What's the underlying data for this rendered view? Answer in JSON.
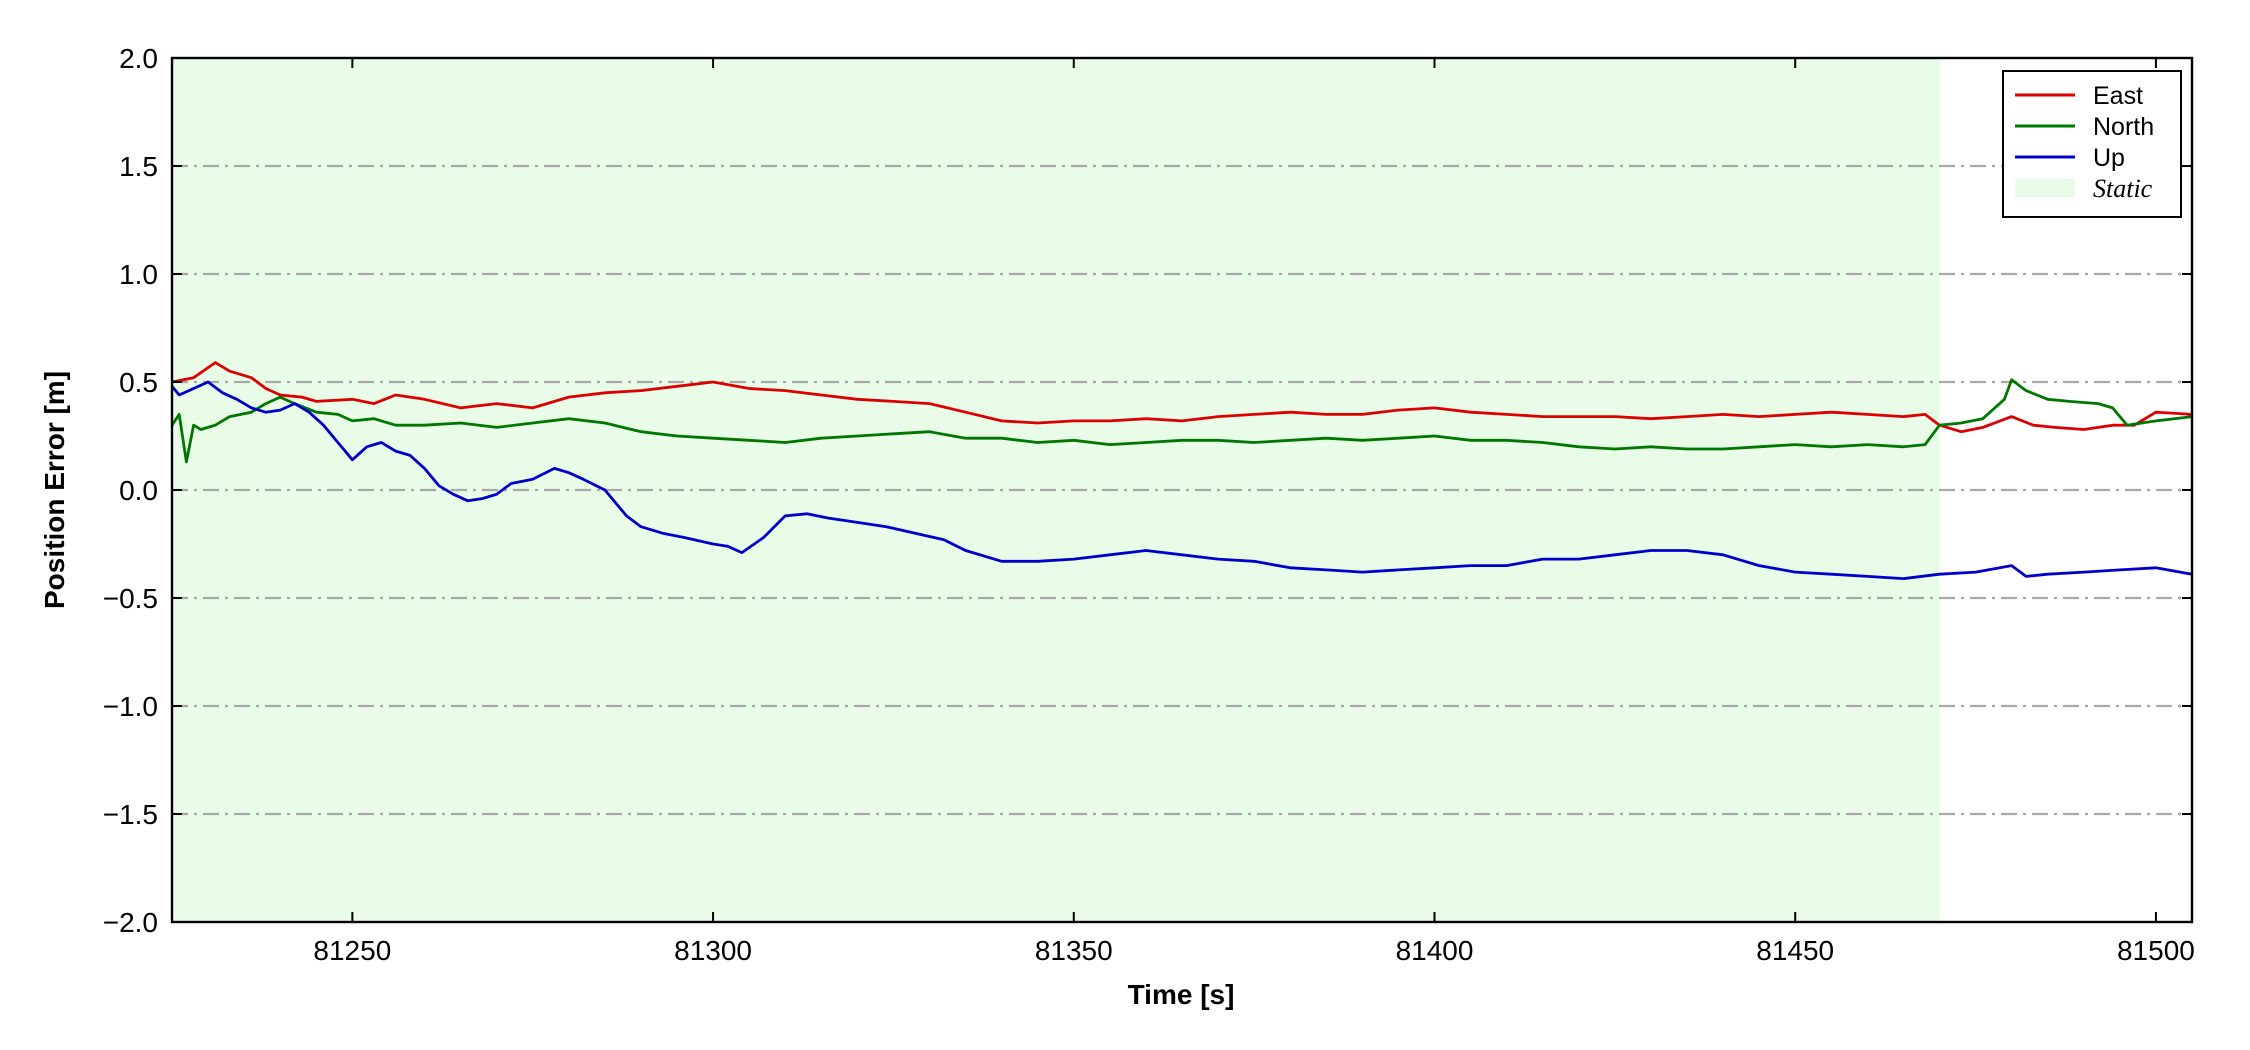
{
  "chart_data": {
    "type": "line",
    "title": "",
    "xlabel": "Time [s]",
    "ylabel": "Position Error [m]",
    "xlim": [
      81225,
      81505
    ],
    "ylim": [
      -2.0,
      2.0
    ],
    "xticks": [
      81250,
      81300,
      81350,
      81400,
      81450,
      81500
    ],
    "yticks": [
      -2.0,
      -1.5,
      -1.0,
      -0.5,
      0.0,
      0.5,
      1.0,
      1.5,
      2.0
    ],
    "ytick_labels": [
      "−2.0",
      "−1.5",
      "−1.0",
      "−0.5",
      "0.0",
      "0.5",
      "1.0",
      "1.5",
      "2.0"
    ],
    "grid": "horizontal dash-dot",
    "legend_position": "top-right",
    "shaded_regions": [
      {
        "name": "Static",
        "x_start": 81225,
        "x_end": 81470,
        "color": "#e8fce8"
      }
    ],
    "series": [
      {
        "name": "East",
        "color": "#dd0000",
        "x": [
          81225,
          81228,
          81231,
          81233,
          81236,
          81238,
          81240,
          81243,
          81245,
          81250,
          81253,
          81256,
          81260,
          81265,
          81270,
          81275,
          81280,
          81285,
          81290,
          81295,
          81300,
          81305,
          81310,
          81315,
          81320,
          81325,
          81330,
          81335,
          81340,
          81345,
          81350,
          81355,
          81360,
          81365,
          81370,
          81375,
          81380,
          81385,
          81390,
          81395,
          81400,
          81405,
          81410,
          81415,
          81420,
          81425,
          81430,
          81435,
          81440,
          81445,
          81450,
          81455,
          81460,
          81465,
          81468,
          81470,
          81473,
          81476,
          81480,
          81483,
          81486,
          81490,
          81494,
          81497,
          81500,
          81505
        ],
        "y": [
          0.5,
          0.52,
          0.59,
          0.55,
          0.52,
          0.47,
          0.44,
          0.43,
          0.41,
          0.42,
          0.4,
          0.44,
          0.42,
          0.38,
          0.4,
          0.38,
          0.43,
          0.45,
          0.46,
          0.48,
          0.5,
          0.47,
          0.46,
          0.44,
          0.42,
          0.41,
          0.4,
          0.36,
          0.32,
          0.31,
          0.32,
          0.32,
          0.33,
          0.32,
          0.34,
          0.35,
          0.36,
          0.35,
          0.35,
          0.37,
          0.38,
          0.36,
          0.35,
          0.34,
          0.34,
          0.34,
          0.33,
          0.34,
          0.35,
          0.34,
          0.35,
          0.36,
          0.35,
          0.34,
          0.35,
          0.3,
          0.27,
          0.29,
          0.34,
          0.3,
          0.29,
          0.28,
          0.3,
          0.3,
          0.36,
          0.35
        ]
      },
      {
        "name": "North",
        "color": "#007700",
        "x": [
          81225,
          81226,
          81227,
          81228,
          81229,
          81231,
          81233,
          81236,
          81238,
          81240,
          81242,
          81245,
          81248,
          81250,
          81253,
          81256,
          81260,
          81265,
          81270,
          81275,
          81280,
          81285,
          81290,
          81295,
          81300,
          81305,
          81310,
          81315,
          81320,
          81325,
          81330,
          81335,
          81340,
          81345,
          81350,
          81355,
          81360,
          81365,
          81370,
          81375,
          81380,
          81385,
          81390,
          81395,
          81400,
          81405,
          81410,
          81415,
          81420,
          81425,
          81430,
          81435,
          81440,
          81445,
          81450,
          81455,
          81460,
          81465,
          81468,
          81470,
          81473,
          81476,
          81479,
          81480,
          81482,
          81485,
          81488,
          81492,
          81494,
          81496,
          81500,
          81505
        ],
        "y": [
          0.3,
          0.35,
          0.13,
          0.3,
          0.28,
          0.3,
          0.34,
          0.36,
          0.4,
          0.43,
          0.4,
          0.36,
          0.35,
          0.32,
          0.33,
          0.3,
          0.3,
          0.31,
          0.29,
          0.31,
          0.33,
          0.31,
          0.27,
          0.25,
          0.24,
          0.23,
          0.22,
          0.24,
          0.25,
          0.26,
          0.27,
          0.24,
          0.24,
          0.22,
          0.23,
          0.21,
          0.22,
          0.23,
          0.23,
          0.22,
          0.23,
          0.24,
          0.23,
          0.24,
          0.25,
          0.23,
          0.23,
          0.22,
          0.2,
          0.19,
          0.2,
          0.19,
          0.19,
          0.2,
          0.21,
          0.2,
          0.21,
          0.2,
          0.21,
          0.3,
          0.31,
          0.33,
          0.42,
          0.51,
          0.46,
          0.42,
          0.41,
          0.4,
          0.38,
          0.3,
          0.32,
          0.34
        ]
      },
      {
        "name": "Up",
        "color": "#0000cc",
        "x": [
          81225,
          81226,
          81228,
          81230,
          81232,
          81234,
          81236,
          81238,
          81240,
          81242,
          81244,
          81246,
          81248,
          81250,
          81252,
          81254,
          81256,
          81258,
          81260,
          81262,
          81264,
          81266,
          81268,
          81270,
          81272,
          81275,
          81278,
          81280,
          81282,
          81285,
          81288,
          81290,
          81293,
          81296,
          81300,
          81302,
          81304,
          81307,
          81310,
          81313,
          81316,
          81320,
          81324,
          81328,
          81332,
          81335,
          81340,
          81345,
          81350,
          81355,
          81360,
          81365,
          81370,
          81375,
          81380,
          81385,
          81390,
          81395,
          81400,
          81405,
          81410,
          81415,
          81420,
          81425,
          81430,
          81435,
          81440,
          81445,
          81450,
          81455,
          81460,
          81465,
          81470,
          81475,
          81480,
          81482,
          81485,
          81490,
          81495,
          81500,
          81505
        ],
        "y": [
          0.48,
          0.44,
          0.47,
          0.5,
          0.45,
          0.42,
          0.38,
          0.36,
          0.37,
          0.4,
          0.36,
          0.3,
          0.22,
          0.14,
          0.2,
          0.22,
          0.18,
          0.16,
          0.1,
          0.02,
          -0.02,
          -0.05,
          -0.04,
          -0.02,
          0.03,
          0.05,
          0.1,
          0.08,
          0.05,
          0.0,
          -0.12,
          -0.17,
          -0.2,
          -0.22,
          -0.25,
          -0.26,
          -0.29,
          -0.22,
          -0.12,
          -0.11,
          -0.13,
          -0.15,
          -0.17,
          -0.2,
          -0.23,
          -0.28,
          -0.33,
          -0.33,
          -0.32,
          -0.3,
          -0.28,
          -0.3,
          -0.32,
          -0.33,
          -0.36,
          -0.37,
          -0.38,
          -0.37,
          -0.36,
          -0.35,
          -0.35,
          -0.32,
          -0.32,
          -0.3,
          -0.28,
          -0.28,
          -0.3,
          -0.35,
          -0.38,
          -0.39,
          -0.4,
          -0.41,
          -0.39,
          -0.38,
          -0.35,
          -0.4,
          -0.39,
          -0.38,
          -0.37,
          -0.36,
          -0.39
        ]
      }
    ]
  }
}
